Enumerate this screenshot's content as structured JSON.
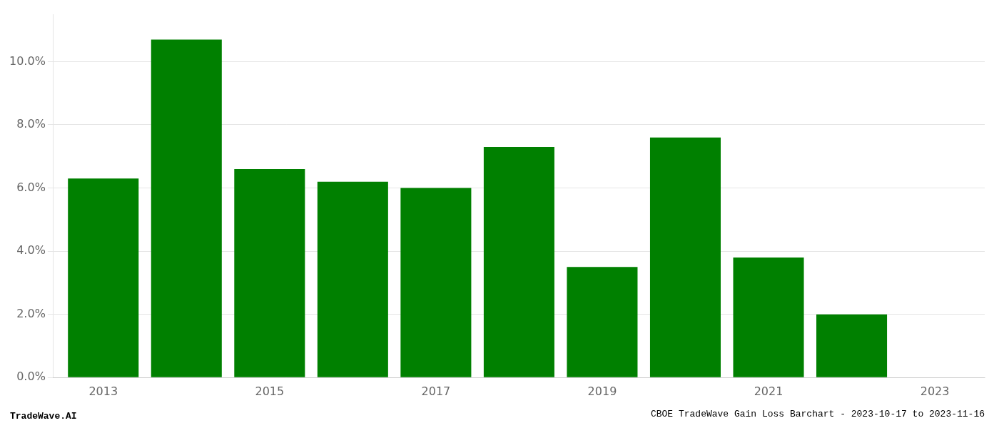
{
  "chart_data": {
    "type": "bar",
    "title": "CBOE TradeWave Gain Loss Barchart - 2023-10-17 to 2023-11-16",
    "annotations": [
      "TradeWave.AI"
    ],
    "x": [
      2013,
      2014,
      2015,
      2016,
      2017,
      2018,
      2019,
      2020,
      2021,
      2022,
      2023
    ],
    "values": [
      0.063,
      0.107,
      0.066,
      0.062,
      0.06,
      0.073,
      0.035,
      0.076,
      0.038,
      0.02,
      0.0
    ],
    "color": "#008000",
    "xlim": [
      2012.4,
      2023.6
    ],
    "xticks": [
      2013,
      2015,
      2017,
      2019,
      2021,
      2023
    ],
    "ylim": [
      0,
      0.115
    ],
    "yticks": [
      {
        "value": 0.0,
        "label": "0.0%"
      },
      {
        "value": 0.02,
        "label": "2.0%"
      },
      {
        "value": 0.04,
        "label": "4.0%"
      },
      {
        "value": 0.06,
        "label": "6.0%"
      },
      {
        "value": 0.08,
        "label": "8.0%"
      },
      {
        "value": 0.1,
        "label": "10.0%"
      }
    ],
    "grid": true
  }
}
